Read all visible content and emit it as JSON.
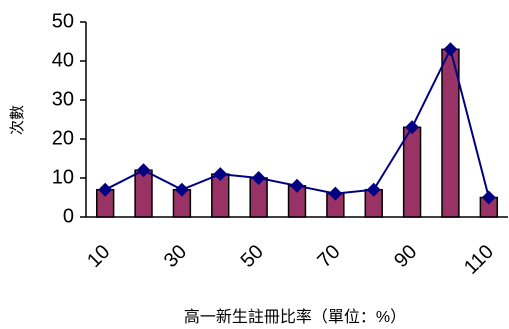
{
  "chart_data": {
    "type": "bar",
    "line_overlay": true,
    "x_label": "高一新生註冊比率（單位：%）",
    "y_label": "次數",
    "categories": [
      "10",
      null,
      "30",
      null,
      "50",
      null,
      "70",
      null,
      "90",
      null,
      "110"
    ],
    "values": [
      7,
      12,
      7,
      11,
      10,
      8,
      6,
      7,
      23,
      43,
      5
    ],
    "bar_color": "#993366",
    "line_color": "#000080",
    "ylim": [
      0,
      50
    ],
    "yticks": [
      0,
      10,
      20,
      30,
      40,
      50
    ],
    "grid": false
  }
}
